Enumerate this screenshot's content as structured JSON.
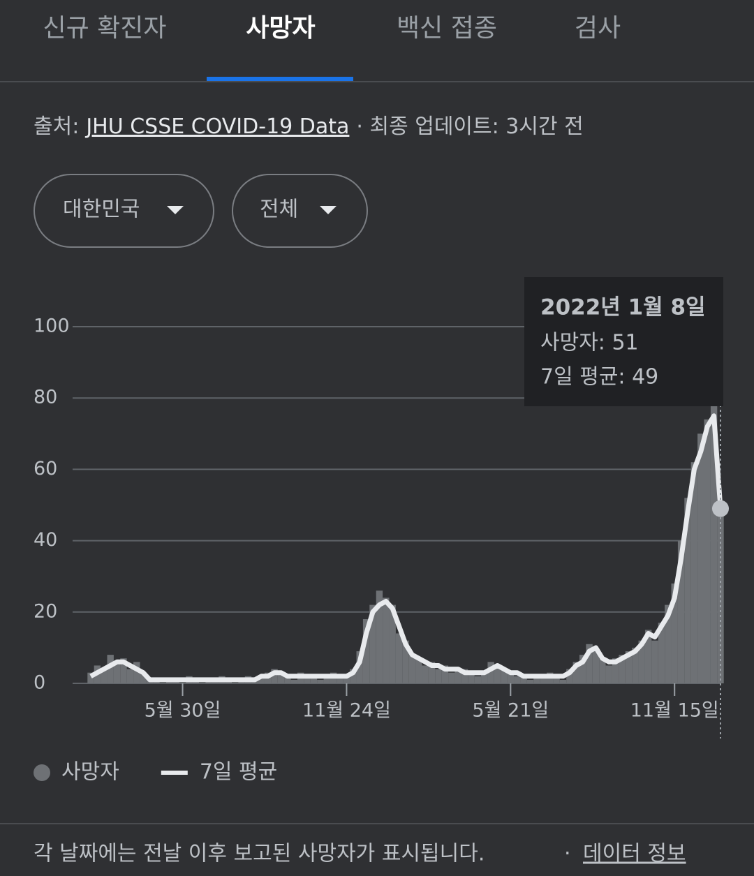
{
  "tabs": [
    "신규 확진자",
    "사망자",
    "백신 접종",
    "검사"
  ],
  "source": {
    "label": "출처:",
    "link": "JHU CSSE COVID-19 Data",
    "updated": "· 최종 업데이트: 3시간 전"
  },
  "dropdowns": [
    "대한민국",
    "전체"
  ],
  "tooltip": {
    "date": "2022년 1월 8일",
    "lines": [
      "사망자: 51",
      "7일 평균: 49"
    ]
  },
  "footer": {
    "note": "각 날짜에는 전날 이후 보고된 사망자가 표시됩니다.",
    "separator": "·",
    "link": "데이터 정보"
  },
  "chart_data": {
    "type": "bar",
    "categories": [
      null,
      null,
      null,
      null,
      null,
      null,
      null,
      null,
      null,
      null,
      null,
      null,
      null,
      null,
      "5월 30일",
      null,
      null,
      null,
      null,
      null,
      null,
      null,
      null,
      null,
      null,
      null,
      null,
      null,
      null,
      null,
      null,
      null,
      null,
      null,
      null,
      null,
      null,
      null,
      null,
      "11월 24일",
      null,
      null,
      null,
      null,
      null,
      null,
      null,
      null,
      null,
      null,
      null,
      null,
      null,
      null,
      null,
      null,
      null,
      null,
      null,
      null,
      null,
      null,
      null,
      null,
      "5월 21일",
      null,
      null,
      null,
      null,
      null,
      null,
      null,
      null,
      null,
      null,
      null,
      null,
      null,
      null,
      null,
      null,
      null,
      null,
      null,
      null,
      null,
      null,
      null,
      null,
      "11월 15일",
      null,
      null,
      null,
      null,
      null,
      null,
      null
    ],
    "series": [
      {
        "name": "사망자",
        "type": "bar",
        "color": "#6e7175",
        "values": [
          3,
          5,
          4,
          8,
          6,
          7,
          4,
          6,
          3,
          1,
          1,
          0,
          1,
          1,
          0,
          2,
          1,
          0,
          1,
          1,
          2,
          1,
          0,
          1,
          2,
          1,
          2,
          3,
          4,
          3,
          2,
          1,
          3,
          2,
          2,
          1,
          2,
          3,
          2,
          2,
          4,
          9,
          18,
          22,
          26,
          24,
          22,
          14,
          12,
          8,
          7,
          5,
          6,
          4,
          5,
          3,
          4,
          4,
          3,
          2,
          3,
          6,
          5,
          4,
          3,
          2,
          2,
          1,
          2,
          2,
          3,
          2,
          1,
          4,
          6,
          8,
          11,
          9,
          7,
          5,
          7,
          8,
          9,
          10,
          12,
          15,
          12,
          17,
          22,
          28,
          40,
          52,
          62,
          70,
          74,
          80,
          51
        ]
      },
      {
        "name": "7일 평균",
        "type": "line",
        "color": "#e8eaed",
        "values": [
          2,
          3,
          4,
          5,
          6,
          6,
          5,
          4,
          3,
          1,
          1,
          1,
          1,
          1,
          1,
          1,
          1,
          1,
          1,
          1,
          1,
          1,
          1,
          1,
          1,
          1,
          2,
          2,
          3,
          3,
          2,
          2,
          2,
          2,
          2,
          2,
          2,
          2,
          2,
          2,
          3,
          6,
          14,
          20,
          22,
          23,
          21,
          16,
          11,
          8,
          7,
          6,
          5,
          5,
          4,
          4,
          4,
          3,
          3,
          3,
          3,
          4,
          5,
          4,
          3,
          3,
          2,
          2,
          2,
          2,
          2,
          2,
          2,
          3,
          5,
          6,
          9,
          10,
          7,
          6,
          6,
          7,
          8,
          9,
          11,
          14,
          13,
          16,
          19,
          24,
          35,
          48,
          60,
          65,
          72,
          75,
          49
        ]
      }
    ],
    "ylim": [
      0,
      100
    ],
    "yticks": [
      0,
      20,
      40,
      60,
      80,
      100
    ],
    "grid": true
  }
}
